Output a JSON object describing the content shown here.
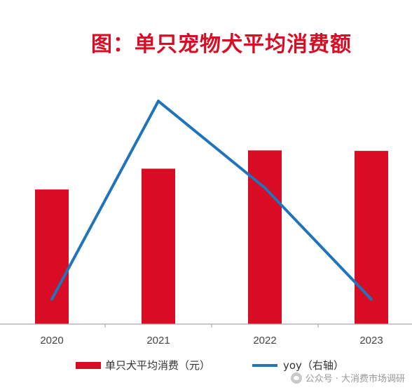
{
  "chart_data": {
    "type": "bar",
    "title": "图：单只宠物犬平均消费额",
    "categories": [
      "2020",
      "2021",
      "2022",
      "2023"
    ],
    "series": [
      {
        "name": "单只犬平均消费（元）",
        "kind": "bar",
        "axis": "left",
        "color": "#d80c24",
        "values": [
          2650,
          3060,
          3420,
          3410
        ]
      },
      {
        "name": "yoy（右轴）",
        "kind": "line",
        "axis": "right",
        "color": "#1f74bb",
        "values": [
          0.04,
          0.36,
          0.22,
          0.04
        ]
      }
    ],
    "ylim_left": [
      0,
      5000
    ],
    "ylim_right": [
      0,
      0.41
    ],
    "grid": false,
    "legend": "bottom"
  },
  "watermark": {
    "icon": "wechat-icon",
    "text": "公众号 · 大消费市场调研"
  }
}
